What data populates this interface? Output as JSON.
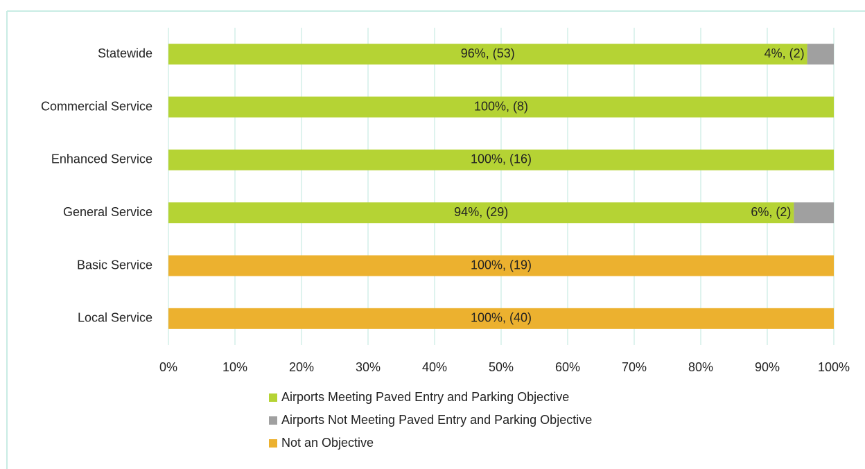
{
  "chart_data": {
    "type": "stacked_barh",
    "categories": [
      "Statewide",
      "Commercial Service",
      "Enhanced Service",
      "General Service",
      "Basic Service",
      "Local Service"
    ],
    "series": [
      {
        "name": "Airports Meeting Paved Entry and Parking Objective",
        "color": "#b5d334",
        "label_color": "#2e5a1c",
        "values": [
          96,
          100,
          100,
          94,
          0,
          0
        ],
        "value_labels": [
          "96%, (53)",
          "100%, (8)",
          "100%, (16)",
          "94%, (29)",
          null,
          null
        ]
      },
      {
        "name": "Airports Not Meeting Paved Entry and Parking Objective",
        "color": "#a0a0a0",
        "label_color": "#2e5a1c",
        "values": [
          4,
          0,
          0,
          6,
          0,
          0
        ],
        "value_labels": [
          "4%, (2)",
          null,
          null,
          "6%, (2)",
          null,
          null
        ]
      },
      {
        "name": "Not an Objective",
        "color": "#ecb12f",
        "label_color": "#ffffff",
        "values": [
          0,
          0,
          0,
          0,
          100,
          100
        ],
        "value_labels": [
          null,
          null,
          null,
          null,
          "100%, (19)",
          "100%, (40)"
        ]
      }
    ],
    "xlim": [
      0,
      100
    ],
    "xticks": [
      {
        "value": 0,
        "label": "0%"
      },
      {
        "value": 10,
        "label": "10%"
      },
      {
        "value": 20,
        "label": "20%"
      },
      {
        "value": 30,
        "label": "30%"
      },
      {
        "value": 40,
        "label": "40%"
      },
      {
        "value": 50,
        "label": "50%"
      },
      {
        "value": 60,
        "label": "60%"
      },
      {
        "value": 70,
        "label": "70%"
      },
      {
        "value": 80,
        "label": "80%"
      },
      {
        "value": 90,
        "label": "90%"
      },
      {
        "value": 100,
        "label": "100%"
      }
    ],
    "grid": true,
    "grid_color": "#d3efe8",
    "legend": "bottom"
  }
}
